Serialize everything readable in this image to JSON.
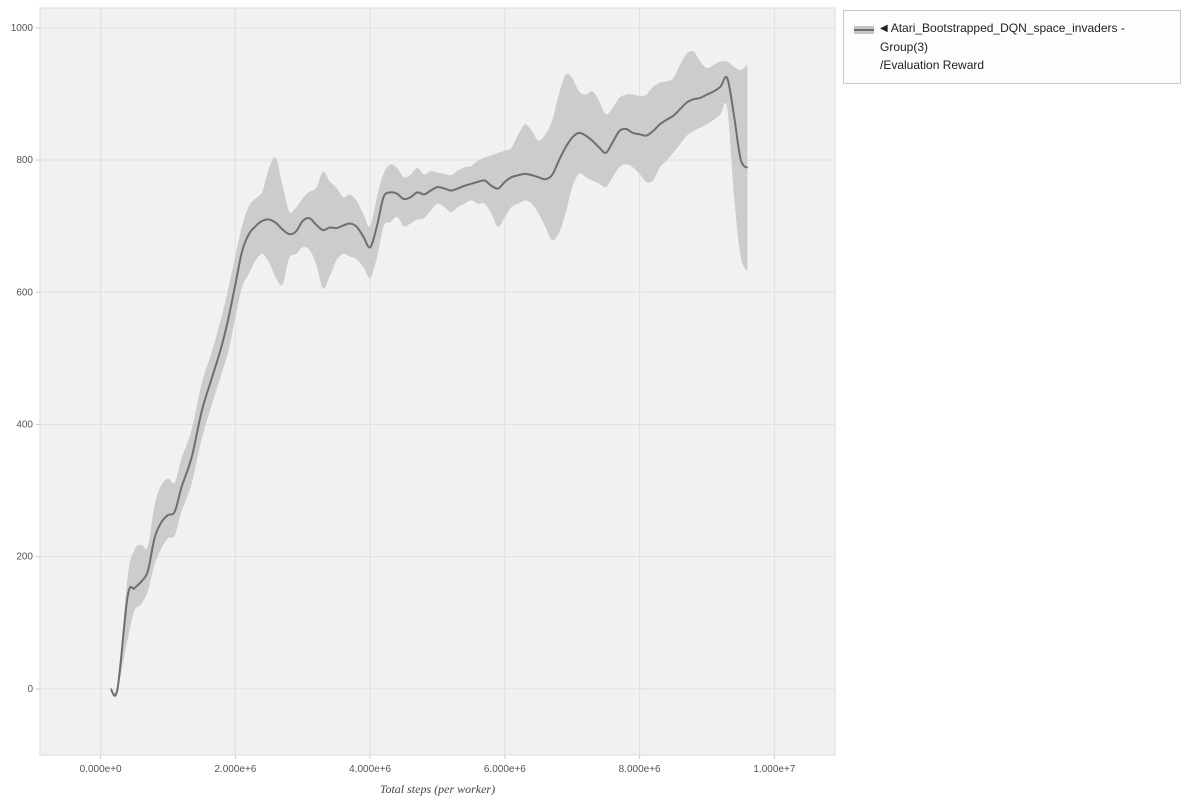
{
  "legend": {
    "marker": "◀",
    "series_name": "Atari_Bootstrapped_DQN_space_invaders - Group(3)",
    "metric_name": "/Evaluation Reward"
  },
  "chart_data": {
    "type": "line",
    "title": "",
    "xlabel": "Total steps (per worker)",
    "ylabel": "",
    "grid": true,
    "legend_position": "top-right",
    "xlim": [
      -900000,
      10900000
    ],
    "ylim": [
      -100,
      1030
    ],
    "x_ticks": [
      0,
      2000000,
      4000000,
      6000000,
      8000000,
      10000000
    ],
    "x_tick_labels": [
      "0.000e+0",
      "2.000e+6",
      "4.000e+6",
      "6.000e+6",
      "8.000e+6",
      "1.000e+7"
    ],
    "y_ticks": [
      0,
      200,
      400,
      600,
      800,
      1000
    ],
    "y_tick_labels": [
      "0",
      "200",
      "400",
      "600",
      "800",
      "1000"
    ],
    "colors": {
      "line": "#6e6e6e",
      "band": "#c5c5c5",
      "plot_bg": "#f1f1f1",
      "grid": "#e0e0e0",
      "plot_border": "#dcdcdc",
      "tick_text": "#555555",
      "axis_title": "#444444"
    },
    "series": [
      {
        "name": "Atari_Bootstrapped_DQN_space_invaders - Group(3)/Evaluation Reward",
        "x": [
          150000,
          250000,
          400000,
          500000,
          600000,
          700000,
          800000,
          900000,
          1000000,
          1100000,
          1200000,
          1350000,
          1500000,
          1650000,
          1800000,
          1900000,
          2000000,
          2100000,
          2200000,
          2300000,
          2400000,
          2500000,
          2600000,
          2700000,
          2800000,
          2900000,
          3000000,
          3100000,
          3200000,
          3300000,
          3400000,
          3500000,
          3600000,
          3700000,
          3800000,
          3900000,
          4000000,
          4100000,
          4200000,
          4300000,
          4400000,
          4500000,
          4600000,
          4700000,
          4800000,
          4900000,
          5000000,
          5100000,
          5200000,
          5300000,
          5400000,
          5500000,
          5600000,
          5700000,
          5800000,
          5900000,
          6000000,
          6100000,
          6200000,
          6300000,
          6400000,
          6500000,
          6600000,
          6700000,
          6800000,
          6900000,
          7000000,
          7100000,
          7200000,
          7300000,
          7400000,
          7500000,
          7600000,
          7700000,
          7800000,
          7900000,
          8000000,
          8100000,
          8200000,
          8300000,
          8400000,
          8500000,
          8600000,
          8700000,
          8800000,
          8900000,
          9000000,
          9100000,
          9200000,
          9300000,
          9400000,
          9500000,
          9600000
        ],
        "mean": [
          0,
          0,
          140,
          152,
          162,
          178,
          228,
          252,
          263,
          268,
          305,
          350,
          420,
          470,
          520,
          562,
          612,
          662,
          688,
          700,
          708,
          710,
          705,
          695,
          688,
          692,
          708,
          712,
          702,
          694,
          698,
          697,
          701,
          704,
          699,
          684,
          668,
          700,
          744,
          751,
          749,
          741,
          744,
          751,
          748,
          754,
          759,
          757,
          754,
          757,
          761,
          764,
          767,
          769,
          761,
          757,
          767,
          774,
          777,
          779,
          777,
          774,
          771,
          777,
          799,
          819,
          834,
          841,
          837,
          829,
          819,
          811,
          827,
          844,
          847,
          841,
          839,
          837,
          844,
          854,
          861,
          867,
          877,
          887,
          892,
          894,
          899,
          904,
          911,
          924,
          868,
          801,
          788
        ],
        "lower": [
          0,
          0,
          75,
          118,
          128,
          148,
          188,
          212,
          228,
          232,
          268,
          310,
          378,
          430,
          478,
          512,
          562,
          608,
          628,
          648,
          658,
          645,
          622,
          612,
          652,
          658,
          668,
          664,
          642,
          606,
          624,
          648,
          658,
          654,
          650,
          638,
          622,
          652,
          700,
          706,
          714,
          700,
          704,
          710,
          712,
          724,
          734,
          729,
          721,
          729,
          734,
          739,
          734,
          734,
          719,
          699,
          714,
          729,
          734,
          739,
          734,
          719,
          699,
          679,
          689,
          719,
          759,
          779,
          774,
          769,
          764,
          759,
          774,
          789,
          794,
          789,
          779,
          767,
          769,
          789,
          799,
          811,
          824,
          837,
          844,
          849,
          854,
          861,
          869,
          879,
          748,
          654,
          632
        ],
        "upper": [
          0,
          0,
          168,
          210,
          218,
          215,
          278,
          308,
          318,
          312,
          348,
          392,
          462,
          510,
          565,
          608,
          655,
          700,
          730,
          742,
          752,
          788,
          803,
          762,
          722,
          728,
          742,
          752,
          758,
          782,
          768,
          758,
          744,
          748,
          738,
          718,
          700,
          744,
          780,
          793,
          788,
          774,
          778,
          788,
          778,
          783,
          781,
          779,
          777,
          784,
          789,
          791,
          799,
          804,
          807,
          811,
          814,
          819,
          839,
          854,
          844,
          829,
          839,
          859,
          899,
          929,
          924,
          904,
          899,
          904,
          889,
          869,
          879,
          894,
          899,
          899,
          897,
          899,
          911,
          917,
          919,
          924,
          944,
          961,
          964,
          949,
          939,
          944,
          949,
          949,
          941,
          936,
          944
        ]
      }
    ]
  }
}
